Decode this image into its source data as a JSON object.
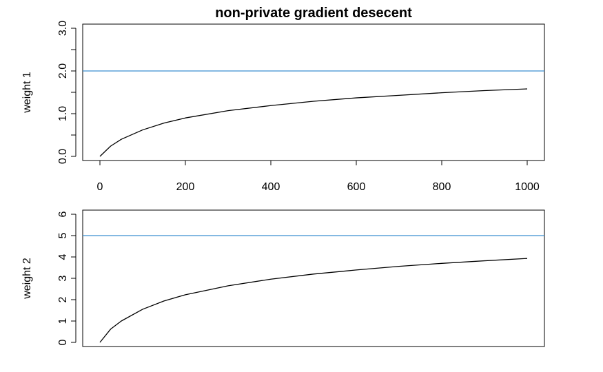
{
  "chart_data": [
    {
      "type": "line",
      "title": "non-private gradient desecent",
      "xlabel": "",
      "ylabel": "weight 1",
      "xlim": [
        0,
        1000
      ],
      "ylim": [
        0,
        3
      ],
      "x_ticks": [
        "0",
        "200",
        "400",
        "600",
        "800",
        "1000"
      ],
      "y_ticks": [
        "0.0",
        "1.0",
        "2.0",
        "3.0"
      ],
      "reference_line": {
        "y": 2.0,
        "color": "#3a8fd0"
      },
      "series": [
        {
          "color": "#000000",
          "x": [
            0,
            25,
            50,
            100,
            150,
            200,
            300,
            400,
            500,
            600,
            700,
            800,
            900,
            1000
          ],
          "y": [
            0.0,
            0.24,
            0.4,
            0.62,
            0.78,
            0.9,
            1.07,
            1.19,
            1.29,
            1.37,
            1.43,
            1.49,
            1.54,
            1.58
          ]
        }
      ]
    },
    {
      "type": "line",
      "title": "",
      "xlabel": "",
      "ylabel": "weight 2",
      "xlim": [
        0,
        1000
      ],
      "ylim": [
        0,
        6
      ],
      "x_ticks": [],
      "y_ticks": [
        "0",
        "1",
        "2",
        "3",
        "4",
        "5",
        "6"
      ],
      "reference_line": {
        "y": 5.0,
        "color": "#3a8fd0"
      },
      "series": [
        {
          "color": "#000000",
          "x": [
            0,
            25,
            50,
            100,
            150,
            200,
            300,
            400,
            500,
            600,
            700,
            800,
            900,
            1000
          ],
          "y": [
            0.0,
            0.62,
            1.0,
            1.55,
            1.94,
            2.23,
            2.65,
            2.96,
            3.2,
            3.39,
            3.56,
            3.7,
            3.82,
            3.93
          ]
        }
      ]
    }
  ]
}
